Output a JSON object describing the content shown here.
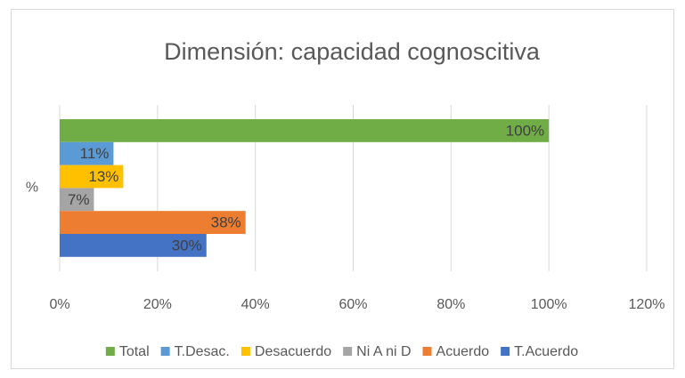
{
  "chart_data": {
    "type": "bar",
    "orientation": "horizontal",
    "title": "Dimensión: capacidad cognoscitiva",
    "categories": [
      "%"
    ],
    "series": [
      {
        "name": "Total",
        "color": "#70ad47",
        "values": [
          100
        ],
        "value_labels": [
          "100%"
        ]
      },
      {
        "name": "T.Desac.",
        "color": "#5b9bd5",
        "values": [
          11
        ],
        "value_labels": [
          "11%"
        ]
      },
      {
        "name": "Desacuerdo",
        "color": "#ffc000",
        "values": [
          13
        ],
        "value_labels": [
          "13%"
        ]
      },
      {
        "name": "Ni A ni D",
        "color": "#a5a5a5",
        "values": [
          7
        ],
        "value_labels": [
          "7%"
        ]
      },
      {
        "name": "Acuerdo",
        "color": "#ed7d31",
        "values": [
          38
        ],
        "value_labels": [
          "38%"
        ]
      },
      {
        "name": "T.Acuerdo",
        "color": "#4472c4",
        "values": [
          30
        ],
        "value_labels": [
          "30%"
        ]
      }
    ],
    "xlim": [
      0,
      120
    ],
    "xticks": [
      {
        "value": 0,
        "label": "0%"
      },
      {
        "value": 20,
        "label": "20%"
      },
      {
        "value": 40,
        "label": "40%"
      },
      {
        "value": 60,
        "label": "60%"
      },
      {
        "value": 80,
        "label": "80%"
      },
      {
        "value": 100,
        "label": "100%"
      },
      {
        "value": 120,
        "label": "120%"
      }
    ],
    "grid": true,
    "legend": "bottom"
  }
}
